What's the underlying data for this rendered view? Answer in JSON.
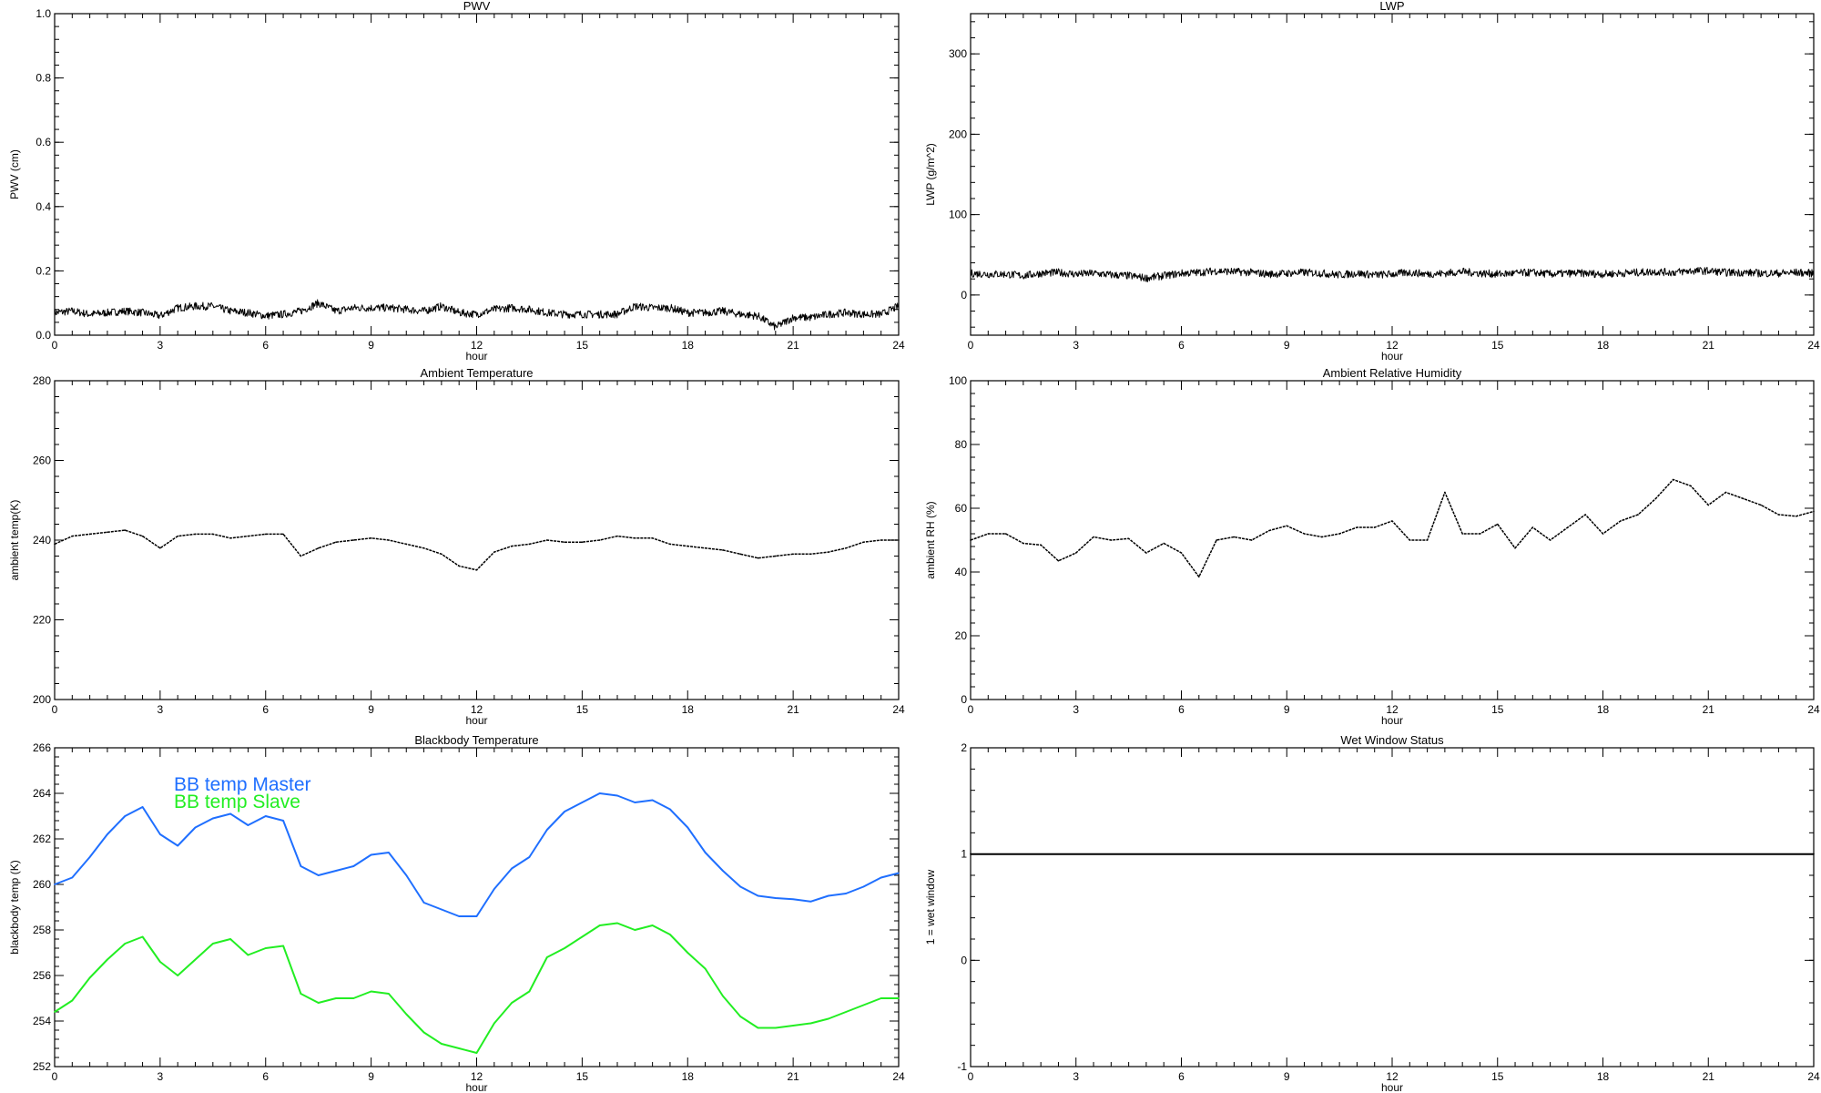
{
  "chart_data": [
    {
      "type": "line",
      "title": "PWV",
      "xlabel": "hour",
      "ylabel": "PWV (cm)",
      "xlim": [
        0,
        24
      ],
      "ylim": [
        0,
        1.0
      ],
      "xticks": [
        "0",
        "3",
        "6",
        "9",
        "12",
        "15",
        "18",
        "21",
        "24"
      ],
      "yticks": [
        "0.0",
        "0.2",
        "0.4",
        "0.6",
        "0.8",
        "1.0"
      ],
      "yminor": 4,
      "series": [
        {
          "color": "#000000",
          "style": "noisy",
          "values": [
            0.07,
            0.075,
            0.065,
            0.07,
            0.075,
            0.07,
            0.06,
            0.085,
            0.09,
            0.09,
            0.075,
            0.07,
            0.06,
            0.065,
            0.075,
            0.1,
            0.075,
            0.085,
            0.085,
            0.085,
            0.08,
            0.075,
            0.09,
            0.07,
            0.065,
            0.08,
            0.085,
            0.08,
            0.07,
            0.065,
            0.065,
            0.065,
            0.065,
            0.09,
            0.085,
            0.085,
            0.07,
            0.07,
            0.075,
            0.065,
            0.06,
            0.025,
            0.055,
            0.055,
            0.065,
            0.07,
            0.065,
            0.065,
            0.09
          ]
        }
      ]
    },
    {
      "type": "line",
      "title": "LWP",
      "xlabel": "hour",
      "ylabel": "LWP (g/m^2)",
      "xlim": [
        0,
        24
      ],
      "ylim": [
        -50,
        350
      ],
      "xticks": [
        "0",
        "3",
        "6",
        "9",
        "12",
        "15",
        "18",
        "21",
        "24"
      ],
      "yticks": [
        "0",
        "100",
        "200",
        "300"
      ],
      "ytick_values": [
        0,
        100,
        200,
        300
      ],
      "yminor": 4,
      "series": [
        {
          "color": "#000000",
          "style": "noisy",
          "values": [
            27,
            26,
            26,
            24,
            27,
            28,
            26,
            27,
            25,
            24,
            21,
            24,
            27,
            28,
            30,
            29,
            28,
            26,
            27,
            28,
            27,
            25,
            27,
            25,
            26,
            28,
            26,
            27,
            29,
            27,
            26,
            27,
            28,
            26,
            27,
            27,
            26,
            27,
            28,
            29,
            28,
            30,
            30,
            28,
            28,
            27,
            27,
            28,
            27
          ]
        }
      ]
    },
    {
      "type": "line",
      "title": "Ambient Temperature",
      "xlabel": "hour",
      "ylabel": "ambient temp(K)",
      "xlim": [
        0,
        24
      ],
      "ylim": [
        200,
        280
      ],
      "xticks": [
        "0",
        "3",
        "6",
        "9",
        "12",
        "15",
        "18",
        "21",
        "24"
      ],
      "yticks": [
        "200",
        "220",
        "240",
        "260",
        "280"
      ],
      "yminor": 4,
      "series": [
        {
          "color": "#000000",
          "style": "dotted-line",
          "values": [
            239,
            241,
            241.5,
            242,
            242.5,
            241,
            238,
            241,
            241.5,
            241.5,
            240.5,
            241,
            241.5,
            241.5,
            236,
            238,
            239.5,
            240,
            240.5,
            240,
            239,
            238,
            236.5,
            233.5,
            232.5,
            237,
            238.5,
            239,
            240,
            239.5,
            239.5,
            240,
            241,
            240.5,
            240.5,
            239,
            238.5,
            238,
            237.5,
            236.5,
            235.5,
            236,
            236.5,
            236.5,
            237,
            238,
            239.5,
            240,
            240
          ]
        }
      ]
    },
    {
      "type": "line",
      "title": "Ambient Relative Humidity",
      "xlabel": "hour",
      "ylabel": "ambient RH (%)",
      "xlim": [
        0,
        24
      ],
      "ylim": [
        0,
        100
      ],
      "xticks": [
        "0",
        "3",
        "6",
        "9",
        "12",
        "15",
        "18",
        "21",
        "24"
      ],
      "yticks": [
        "0",
        "20",
        "40",
        "60",
        "80",
        "100"
      ],
      "yminor": 4,
      "series": [
        {
          "color": "#000000",
          "style": "dotted-line",
          "values": [
            50,
            52,
            52,
            49,
            48.5,
            43.5,
            46,
            51,
            50,
            50.5,
            46,
            49,
            46,
            38.5,
            50,
            51,
            50,
            53,
            54.5,
            52,
            51,
            52,
            54,
            54,
            56,
            50,
            50,
            65,
            52,
            52,
            55,
            47.5,
            54,
            50,
            54,
            58,
            52,
            56,
            58,
            63,
            69,
            67,
            61,
            65,
            63,
            61,
            58,
            57.5,
            59
          ]
        }
      ]
    },
    {
      "type": "line",
      "title": "Blackbody Temperature",
      "xlabel": "hour",
      "ylabel": "blackbody temp (K)",
      "xlim": [
        0,
        24
      ],
      "ylim": [
        252,
        266
      ],
      "xticks": [
        "0",
        "3",
        "6",
        "9",
        "12",
        "15",
        "18",
        "21",
        "24"
      ],
      "yticks": [
        "252",
        "254",
        "256",
        "258",
        "260",
        "262",
        "264",
        "266"
      ],
      "yminor": 4,
      "legend_position": "top-left",
      "series": [
        {
          "name": "BB temp Master",
          "color": "#1f6fff",
          "style": "solid",
          "values": [
            260.0,
            260.3,
            261.2,
            262.2,
            263.0,
            263.4,
            262.2,
            261.7,
            262.5,
            262.9,
            263.1,
            262.6,
            263.0,
            262.8,
            260.8,
            260.4,
            260.6,
            260.8,
            261.3,
            261.4,
            260.4,
            259.2,
            258.9,
            258.6,
            258.6,
            259.8,
            260.7,
            261.2,
            262.4,
            263.2,
            263.6,
            264.0,
            263.9,
            263.6,
            263.7,
            263.3,
            262.5,
            261.4,
            260.6,
            259.9,
            259.5,
            259.4,
            259.35,
            259.25,
            259.5,
            259.6,
            259.9,
            260.3,
            260.5
          ]
        },
        {
          "name": "BB temp Slave",
          "color": "#22ee22",
          "style": "solid",
          "values": [
            254.4,
            254.9,
            255.9,
            256.7,
            257.4,
            257.7,
            256.6,
            256.0,
            256.7,
            257.4,
            257.6,
            256.9,
            257.2,
            257.3,
            255.2,
            254.8,
            255.0,
            255.0,
            255.3,
            255.2,
            254.3,
            253.5,
            253.0,
            252.8,
            252.6,
            253.9,
            254.8,
            255.3,
            256.8,
            257.2,
            257.7,
            258.2,
            258.3,
            258.0,
            258.2,
            257.8,
            257.0,
            256.3,
            255.1,
            254.2,
            253.7,
            253.7,
            253.8,
            253.9,
            254.1,
            254.4,
            254.7,
            255.0,
            255.0
          ]
        }
      ]
    },
    {
      "type": "line",
      "title": "Wet Window Status",
      "xlabel": "hour",
      "ylabel": "1 = wet window",
      "xlim": [
        0,
        24
      ],
      "ylim": [
        -1,
        2
      ],
      "xticks": [
        "0",
        "3",
        "6",
        "9",
        "12",
        "15",
        "18",
        "21",
        "24"
      ],
      "yticks": [
        "-1",
        "0",
        "1",
        "2"
      ],
      "yminor": 4,
      "series": [
        {
          "color": "#000000",
          "style": "solid",
          "values": [
            1,
            1
          ]
        }
      ]
    }
  ]
}
